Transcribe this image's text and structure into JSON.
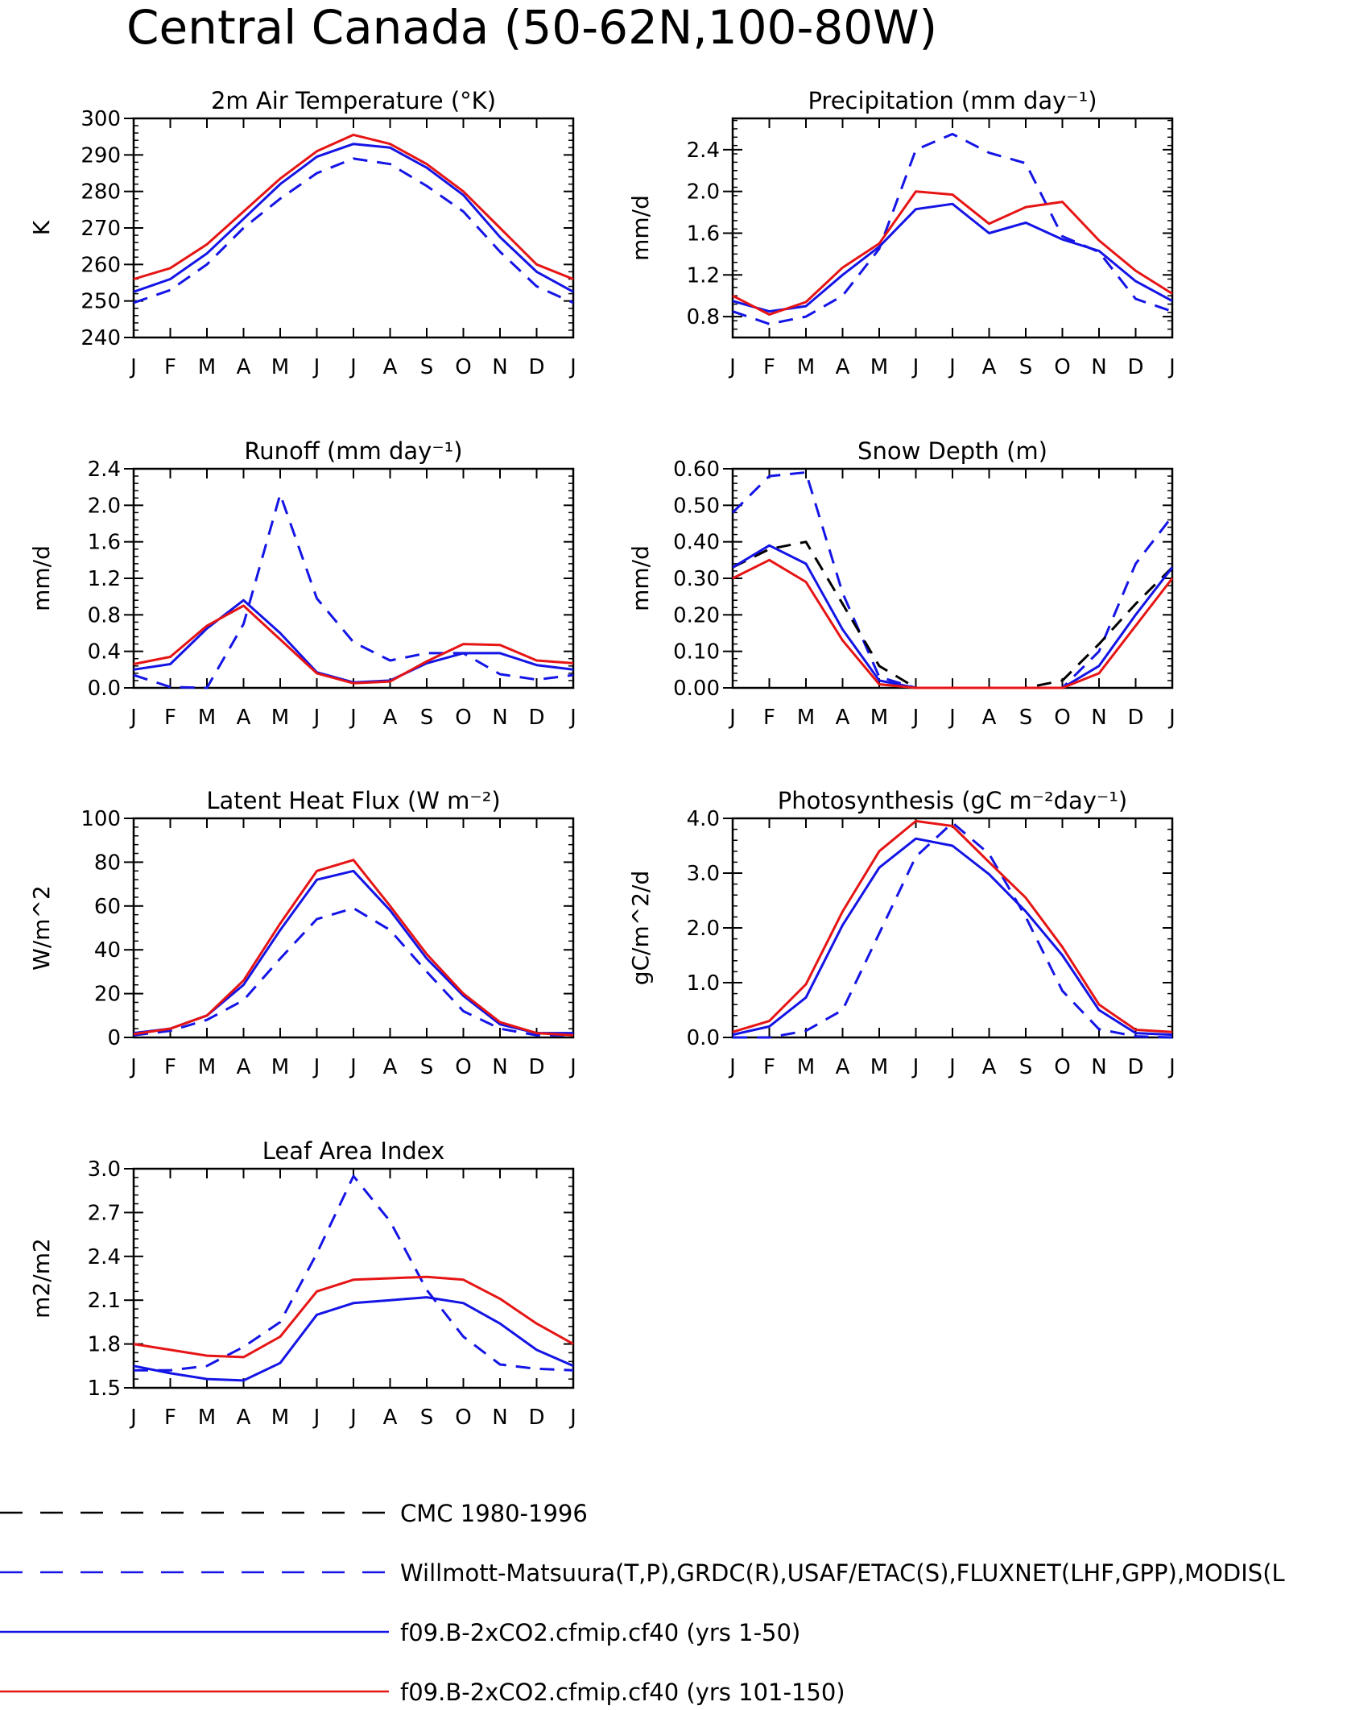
{
  "title": "Central Canada (50-62N,100-80W)",
  "colors": {
    "obs_cmc": "#000000",
    "obs": "#1414e6",
    "run1": "#1414e6",
    "run2": "#e61414"
  },
  "legend": [
    {
      "key": "obs_cmc",
      "label": "CMC 1980-1996",
      "color": "#000000",
      "dash": true
    },
    {
      "key": "obs",
      "label": "Willmott-Matsuura(T,P),GRDC(R),USAF/ETAC(S),FLUXNET(LHF,GPP),MODIS(L",
      "color": "#1414e6",
      "dash": true
    },
    {
      "key": "run1",
      "label": "f09.B-2xCO2.cfmip.cf40 (yrs 1-50)",
      "color": "#1414e6",
      "dash": false
    },
    {
      "key": "run2",
      "label": "f09.B-2xCO2.cfmip.cf40 (yrs 101-150)",
      "color": "#e61414",
      "dash": false
    }
  ],
  "chart_data": [
    {
      "type": "line",
      "title": "2m Air Temperature (°K)",
      "ylabel": "K",
      "x": [
        "J",
        "F",
        "M",
        "A",
        "M",
        "J",
        "J",
        "A",
        "S",
        "O",
        "N",
        "D",
        "J"
      ],
      "ylim": [
        240,
        300
      ],
      "yticks": [
        "240",
        "250",
        "260",
        "270",
        "280",
        "290",
        "300"
      ],
      "series": [
        {
          "key": "obs",
          "values": [
            249.5,
            253,
            260,
            270,
            278,
            285,
            289,
            287.5,
            281.5,
            274.5,
            263.5,
            254,
            249.5
          ]
        },
        {
          "key": "run1",
          "values": [
            252.5,
            256,
            263,
            272.5,
            282,
            289.5,
            293,
            292,
            286.5,
            279,
            267.5,
            258,
            252.5
          ]
        },
        {
          "key": "run2",
          "values": [
            256,
            259,
            265.5,
            274.5,
            283.5,
            291,
            295.5,
            293,
            287.5,
            280,
            270,
            260,
            256
          ]
        }
      ]
    },
    {
      "type": "line",
      "title": "Precipitation (mm day⁻¹)",
      "ylabel": "mm/d",
      "x": [
        "J",
        "F",
        "M",
        "A",
        "M",
        "J",
        "J",
        "A",
        "S",
        "O",
        "N",
        "D",
        "J"
      ],
      "ylim": [
        0.6,
        2.7
      ],
      "yticks": [
        "0.8",
        "1.2",
        "1.6",
        "2.0",
        "2.4"
      ],
      "series": [
        {
          "key": "obs",
          "values": [
            0.85,
            0.73,
            0.8,
            1.0,
            1.45,
            2.4,
            2.55,
            2.37,
            2.27,
            1.57,
            1.42,
            0.97,
            0.85
          ]
        },
        {
          "key": "run1",
          "values": [
            0.95,
            0.85,
            0.9,
            1.2,
            1.47,
            1.83,
            1.88,
            1.6,
            1.7,
            1.54,
            1.43,
            1.14,
            0.95
          ]
        },
        {
          "key": "run2",
          "values": [
            1.0,
            0.82,
            0.94,
            1.27,
            1.5,
            2.0,
            1.97,
            1.69,
            1.85,
            1.9,
            1.53,
            1.24,
            1.02
          ]
        }
      ]
    },
    {
      "type": "line",
      "title": "Runoff (mm day⁻¹)",
      "ylabel": "mm/d",
      "x": [
        "J",
        "F",
        "M",
        "A",
        "M",
        "J",
        "J",
        "A",
        "S",
        "O",
        "N",
        "D",
        "J"
      ],
      "ylim": [
        0,
        2.4
      ],
      "yticks": [
        "0.0",
        "0.4",
        "0.8",
        "1.2",
        "1.6",
        "2.0",
        "2.4"
      ],
      "series": [
        {
          "key": "obs",
          "values": [
            0.14,
            0.01,
            0.0,
            0.7,
            2.12,
            0.98,
            0.5,
            0.3,
            0.38,
            0.38,
            0.15,
            0.09,
            0.14
          ]
        },
        {
          "key": "run1",
          "values": [
            0.2,
            0.26,
            0.65,
            0.96,
            0.6,
            0.17,
            0.06,
            0.08,
            0.27,
            0.38,
            0.38,
            0.25,
            0.2
          ]
        },
        {
          "key": "run2",
          "values": [
            0.26,
            0.34,
            0.68,
            0.9,
            0.53,
            0.16,
            0.05,
            0.07,
            0.29,
            0.48,
            0.47,
            0.3,
            0.27
          ]
        }
      ]
    },
    {
      "type": "line",
      "title": "Snow Depth (m)",
      "ylabel": "mm/d",
      "x": [
        "J",
        "F",
        "M",
        "A",
        "M",
        "J",
        "J",
        "A",
        "S",
        "O",
        "N",
        "D",
        "J"
      ],
      "ylim": [
        0,
        0.6
      ],
      "yticks": [
        "0.00",
        "0.10",
        "0.20",
        "0.30",
        "0.40",
        "0.50",
        "0.60"
      ],
      "series": [
        {
          "key": "obs",
          "values": [
            0.48,
            0.58,
            0.59,
            0.26,
            0.03,
            0.0,
            0.0,
            0.0,
            0.0,
            0.0,
            0.1,
            0.34,
            0.47
          ]
        },
        {
          "key": "obs_cmc",
          "values": [
            0.33,
            0.38,
            0.4,
            0.23,
            0.06,
            0.0,
            0.0,
            0.0,
            0.0,
            0.02,
            0.12,
            0.23,
            0.33
          ]
        },
        {
          "key": "run1",
          "values": [
            0.33,
            0.39,
            0.34,
            0.16,
            0.02,
            0.0,
            0.0,
            0.0,
            0.0,
            0.0,
            0.06,
            0.2,
            0.33
          ]
        },
        {
          "key": "run2",
          "values": [
            0.3,
            0.35,
            0.29,
            0.13,
            0.01,
            0.0,
            0.0,
            0.0,
            0.0,
            0.0,
            0.04,
            0.17,
            0.3
          ]
        }
      ]
    },
    {
      "type": "line",
      "title": "Latent Heat Flux (W m⁻²)",
      "ylabel": "W/m^2",
      "x": [
        "J",
        "F",
        "M",
        "A",
        "M",
        "J",
        "J",
        "A",
        "S",
        "O",
        "N",
        "D",
        "J"
      ],
      "ylim": [
        0,
        100
      ],
      "yticks": [
        "0",
        "20",
        "40",
        "60",
        "80",
        "100"
      ],
      "series": [
        {
          "key": "obs",
          "values": [
            1,
            3,
            8,
            17,
            36,
            54,
            59,
            49,
            30,
            12,
            4,
            1,
            1
          ]
        },
        {
          "key": "run1",
          "values": [
            2,
            4,
            10,
            24,
            49,
            72,
            76,
            58,
            36,
            19,
            6,
            2,
            2
          ]
        },
        {
          "key": "run2",
          "values": [
            1.5,
            4,
            10,
            26,
            52,
            76,
            81,
            60,
            38,
            20,
            7,
            2,
            1
          ]
        }
      ]
    },
    {
      "type": "line",
      "title": "Photosynthesis (gC m⁻²day⁻¹)",
      "ylabel": "gC/m^2/d",
      "x": [
        "J",
        "F",
        "M",
        "A",
        "M",
        "J",
        "J",
        "A",
        "S",
        "O",
        "N",
        "D",
        "J"
      ],
      "ylim": [
        0,
        4
      ],
      "yticks": [
        "0.0",
        "1.0",
        "2.0",
        "3.0",
        "4.0"
      ],
      "series": [
        {
          "key": "obs",
          "values": [
            0.0,
            0.0,
            0.12,
            0.5,
            1.9,
            3.3,
            3.92,
            3.35,
            2.2,
            0.85,
            0.15,
            0.02,
            0.0
          ]
        },
        {
          "key": "run1",
          "values": [
            0.05,
            0.2,
            0.73,
            2.05,
            3.1,
            3.63,
            3.5,
            2.98,
            2.3,
            1.5,
            0.5,
            0.08,
            0.05
          ]
        },
        {
          "key": "run2",
          "values": [
            0.1,
            0.3,
            0.97,
            2.3,
            3.4,
            3.95,
            3.86,
            3.2,
            2.55,
            1.65,
            0.6,
            0.14,
            0.1
          ]
        }
      ]
    },
    {
      "type": "line",
      "title": "Leaf Area Index",
      "ylabel": "m2/m2",
      "x": [
        "J",
        "F",
        "M",
        "A",
        "M",
        "J",
        "J",
        "A",
        "S",
        "O",
        "N",
        "D",
        "J"
      ],
      "ylim": [
        1.5,
        3.0
      ],
      "yticks": [
        "1.5",
        "1.8",
        "2.1",
        "2.4",
        "2.7",
        "3.0"
      ],
      "series": [
        {
          "key": "obs",
          "values": [
            1.62,
            1.62,
            1.65,
            1.78,
            1.95,
            2.42,
            2.95,
            2.64,
            2.17,
            1.85,
            1.66,
            1.63,
            1.62
          ]
        },
        {
          "key": "run1",
          "values": [
            1.65,
            1.6,
            1.56,
            1.55,
            1.67,
            2.0,
            2.08,
            2.1,
            2.12,
            2.08,
            1.94,
            1.76,
            1.65
          ]
        },
        {
          "key": "run2",
          "values": [
            1.8,
            1.76,
            1.72,
            1.71,
            1.85,
            2.16,
            2.24,
            2.25,
            2.26,
            2.24,
            2.11,
            1.94,
            1.8
          ]
        }
      ]
    }
  ]
}
